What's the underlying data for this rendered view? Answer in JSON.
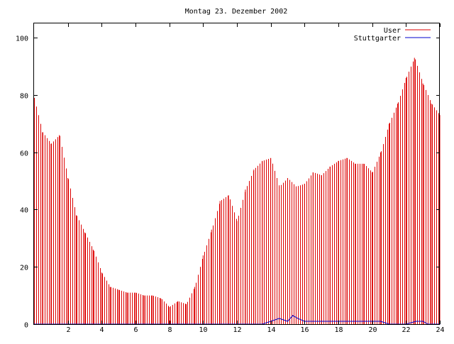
{
  "chart_data": {
    "type": "bar",
    "title": "Montag 23. Dezember 2002",
    "xlabel": "",
    "ylabel": "",
    "xlim": [
      0,
      24
    ],
    "ylim": [
      0,
      105
    ],
    "x_ticks": [
      2,
      4,
      6,
      8,
      10,
      12,
      14,
      16,
      18,
      20,
      22,
      24
    ],
    "y_ticks": [
      0,
      20,
      40,
      60,
      80,
      100
    ],
    "grid": false,
    "legend_position": "top-right",
    "series": [
      {
        "name": "User",
        "style": "impulses",
        "color": "#dd0000",
        "x": [
          0.0,
          0.5,
          1.0,
          1.5,
          2.0,
          2.5,
          3.0,
          3.5,
          4.0,
          4.5,
          5.0,
          5.5,
          6.0,
          6.5,
          7.0,
          7.5,
          8.0,
          8.5,
          9.0,
          9.5,
          10.0,
          10.5,
          11.0,
          11.5,
          12.0,
          12.5,
          13.0,
          13.5,
          14.0,
          14.5,
          15.0,
          15.5,
          16.0,
          16.5,
          17.0,
          17.5,
          18.0,
          18.5,
          19.0,
          19.5,
          20.0,
          20.5,
          21.0,
          21.5,
          22.0,
          22.5,
          23.0,
          23.5,
          24.0
        ],
        "values": [
          79,
          67,
          63,
          66,
          51,
          38,
          32,
          26,
          18,
          13,
          12,
          11,
          11,
          10,
          10,
          9,
          6,
          8,
          7,
          13,
          24,
          33,
          43,
          45,
          36,
          47,
          54,
          57,
          58,
          48,
          51,
          48,
          49,
          53,
          52,
          55,
          57,
          58,
          56,
          56,
          53,
          60,
          70,
          77,
          86,
          93,
          84,
          77,
          73
        ]
      },
      {
        "name": "Stuttgarter",
        "style": "line",
        "color": "#0000cc",
        "x": [
          0,
          13.5,
          14.0,
          14.5,
          15.0,
          15.3,
          15.6,
          16.0,
          17.0,
          18.0,
          19.0,
          20.0,
          20.5,
          21.0,
          22.0,
          22.6,
          23.0,
          23.3,
          24.0
        ],
        "values": [
          0,
          0,
          1,
          2,
          1,
          3,
          2,
          1,
          1,
          1,
          1,
          1,
          1,
          0,
          0,
          1,
          1,
          0,
          0
        ]
      }
    ]
  }
}
